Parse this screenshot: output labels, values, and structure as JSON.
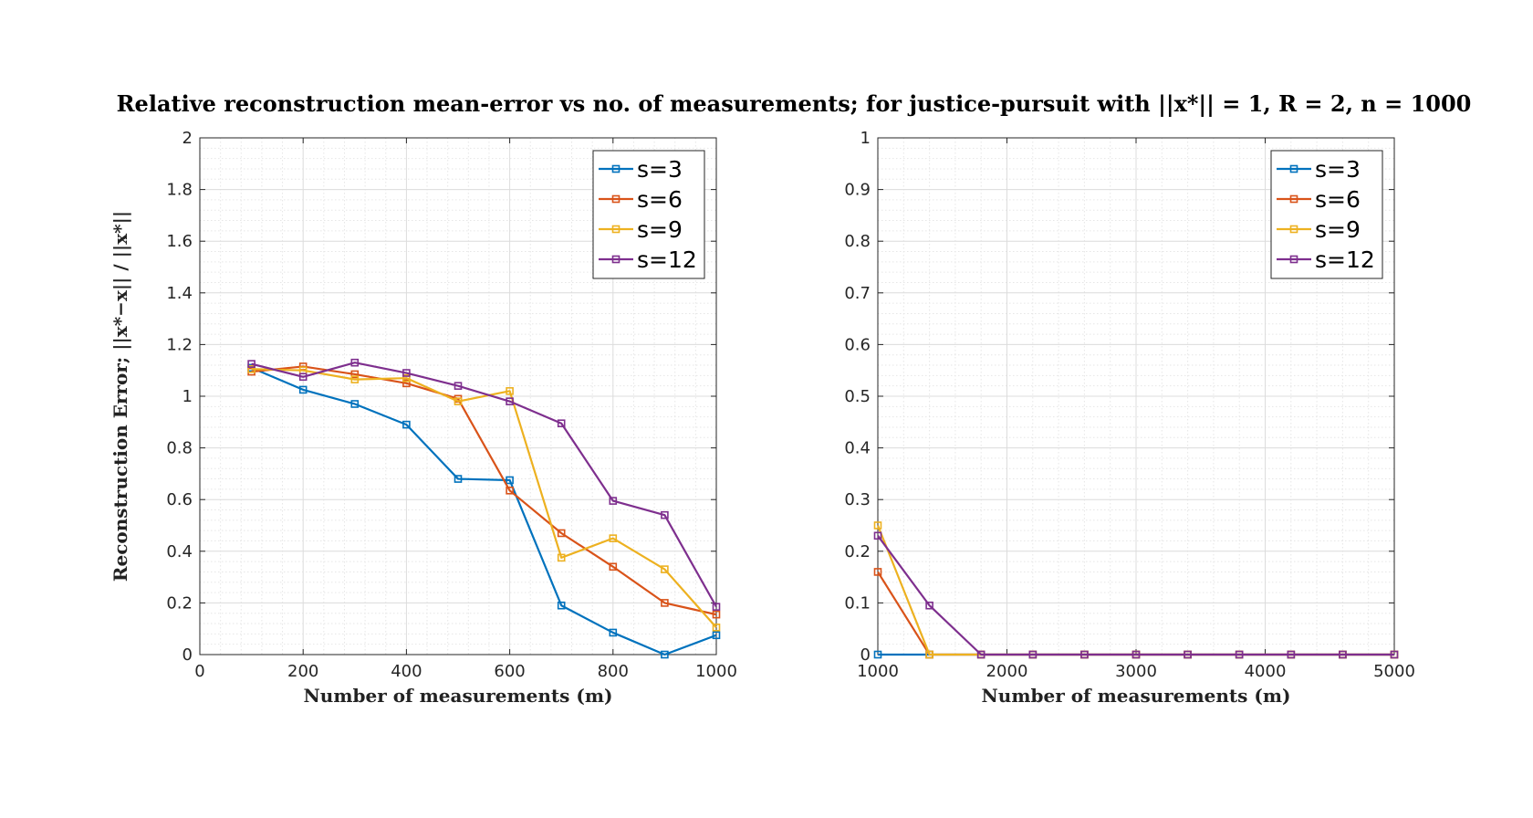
{
  "figure": {
    "title": "Relative reconstruction mean-error vs no. of measurements; for justice-pursuit with ||x*|| = 1, R = 2, n = 1000"
  },
  "colors": {
    "s3": "#0072BD",
    "s6": "#D95319",
    "s9": "#EDB120",
    "s12": "#7E2F8E"
  },
  "chart_data": [
    {
      "type": "line",
      "xlabel": "Number of measurements (m)",
      "ylabel": "Reconstruction Error; ||x*−x|| / ||x*||",
      "xlim": [
        0,
        1000
      ],
      "ylim": [
        0,
        2
      ],
      "xticks": [
        0,
        200,
        400,
        600,
        800,
        1000
      ],
      "yticks": [
        0,
        0.2,
        0.4,
        0.6,
        0.8,
        1,
        1.2,
        1.4,
        1.6,
        1.8,
        2
      ],
      "grid": true,
      "legend_position": "top-right",
      "x": [
        100,
        200,
        300,
        400,
        500,
        600,
        700,
        800,
        900,
        1000
      ],
      "series": [
        {
          "name": "s=3",
          "values": [
            1.11,
            1.025,
            0.97,
            0.89,
            0.68,
            0.675,
            0.19,
            0.085,
            0.0,
            0.075
          ]
        },
        {
          "name": "s=6",
          "values": [
            1.095,
            1.115,
            1.085,
            1.05,
            0.99,
            0.635,
            0.47,
            0.34,
            0.2,
            0.155
          ]
        },
        {
          "name": "s=9",
          "values": [
            1.105,
            1.1,
            1.065,
            1.07,
            0.98,
            1.02,
            0.375,
            0.45,
            0.33,
            0.105
          ]
        },
        {
          "name": "s=12",
          "values": [
            1.125,
            1.075,
            1.13,
            1.09,
            1.04,
            0.98,
            0.895,
            0.595,
            0.54,
            0.185
          ]
        }
      ]
    },
    {
      "type": "line",
      "xlabel": "Number of measurements (m)",
      "ylabel": "",
      "xlim": [
        1000,
        5000
      ],
      "ylim": [
        0,
        1
      ],
      "xticks": [
        1000,
        2000,
        3000,
        4000,
        5000
      ],
      "yticks": [
        0,
        0.1,
        0.2,
        0.3,
        0.4,
        0.5,
        0.6,
        0.7,
        0.8,
        0.9,
        1
      ],
      "grid": true,
      "legend_position": "top-right",
      "x": [
        1000,
        1400,
        1800,
        2200,
        2600,
        3000,
        3400,
        3800,
        4200,
        4600,
        5000
      ],
      "series": [
        {
          "name": "s=3",
          "values": [
            0,
            0,
            0,
            0,
            0,
            0,
            0,
            0,
            0,
            0,
            0
          ]
        },
        {
          "name": "s=6",
          "values": [
            0.16,
            0,
            0,
            0,
            0,
            0,
            0,
            0,
            0,
            0,
            0
          ]
        },
        {
          "name": "s=9",
          "values": [
            0.25,
            0,
            0,
            0,
            0,
            0,
            0,
            0,
            0,
            0,
            0
          ]
        },
        {
          "name": "s=12",
          "values": [
            0.23,
            0.095,
            0,
            0,
            0,
            0,
            0,
            0,
            0,
            0,
            0
          ]
        }
      ]
    }
  ]
}
